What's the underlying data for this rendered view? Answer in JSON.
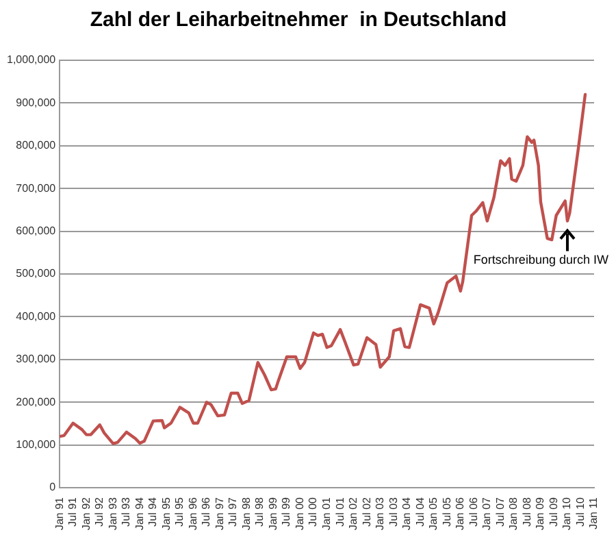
{
  "chart_data": {
    "type": "line",
    "title": "Zahl der Leiharbeitnehmer  in Deutschland",
    "series": [
      {
        "color": "#c0504d",
        "x": [
          "1991-01",
          "1991-03",
          "1991-07",
          "1991-11",
          "1992-01",
          "1992-03",
          "1992-07",
          "1992-09",
          "1993-01",
          "1993-03",
          "1993-07",
          "1993-11",
          "1994-01",
          "1994-03",
          "1994-07",
          "1994-11",
          "1994-12",
          "1995-03",
          "1995-07",
          "1995-11",
          "1996-01",
          "1996-03",
          "1996-07",
          "1996-09",
          "1996-12",
          "1997-03",
          "1997-06",
          "1997-09",
          "1997-11",
          "1998-02",
          "1998-06",
          "1998-09",
          "1998-12",
          "1999-02",
          "1999-03",
          "1999-07",
          "1999-11",
          "2000-01",
          "2000-03",
          "2000-07",
          "2000-09",
          "2000-11",
          "2001-01",
          "2001-03",
          "2001-07",
          "2001-09",
          "2002-01",
          "2002-03",
          "2002-07",
          "2002-11",
          "2003-01",
          "2003-05",
          "2003-07",
          "2003-10",
          "2003-12",
          "2004-02",
          "2004-07",
          "2004-11",
          "2005-01",
          "2005-03",
          "2005-07",
          "2005-11",
          "2006-01",
          "2006-02",
          "2006-06",
          "2006-08",
          "2006-11",
          "2007-01",
          "2007-04",
          "2007-07",
          "2007-09",
          "2007-11",
          "2007-12",
          "2008-02",
          "2008-05",
          "2008-07",
          "2008-09",
          "2008-10",
          "2008-12",
          "2009-01",
          "2009-04",
          "2009-06",
          "2009-08",
          "2009-12",
          "2010-01",
          "2010-02",
          "2010-06",
          "2010-09"
        ],
        "values": [
          120000,
          122000,
          151000,
          136000,
          124000,
          124000,
          147000,
          128000,
          103000,
          106000,
          130000,
          115000,
          104000,
          109000,
          156000,
          157000,
          140000,
          151000,
          188000,
          175000,
          151000,
          151000,
          200000,
          194000,
          168000,
          170000,
          221000,
          221000,
          197000,
          204000,
          293000,
          264000,
          229000,
          231000,
          247000,
          306000,
          306000,
          279000,
          293000,
          362000,
          356000,
          359000,
          328000,
          332000,
          370000,
          343000,
          287000,
          289000,
          351000,
          335000,
          282000,
          306000,
          367000,
          372000,
          330000,
          328000,
          428000,
          420000,
          383000,
          410000,
          479000,
          495000,
          460000,
          482000,
          637000,
          647000,
          667000,
          624000,
          679000,
          765000,
          754000,
          770000,
          722000,
          717000,
          754000,
          821000,
          808000,
          813000,
          754000,
          669000,
          583000,
          580000,
          637000,
          671000,
          624000,
          642000,
          797000,
          920000
        ]
      }
    ],
    "xlim": [
      "1991-01",
      "2011-01"
    ],
    "xticks": [
      {
        "value": "1991-01",
        "label": "Jan 91"
      },
      {
        "value": "1991-07",
        "label": "Jul 91"
      },
      {
        "value": "1992-01",
        "label": "Jan 92"
      },
      {
        "value": "1992-07",
        "label": "Jul 92"
      },
      {
        "value": "1993-01",
        "label": "Jan 93"
      },
      {
        "value": "1993-07",
        "label": "Jul 93"
      },
      {
        "value": "1994-01",
        "label": "Jan 94"
      },
      {
        "value": "1994-07",
        "label": "Jul 94"
      },
      {
        "value": "1995-01",
        "label": "Jan 95"
      },
      {
        "value": "1995-07",
        "label": "Jul 95"
      },
      {
        "value": "1996-01",
        "label": "Jan 96"
      },
      {
        "value": "1996-07",
        "label": "Jul 96"
      },
      {
        "value": "1997-01",
        "label": "Jan 97"
      },
      {
        "value": "1997-07",
        "label": "Jul 97"
      },
      {
        "value": "1998-01",
        "label": "Jan 98"
      },
      {
        "value": "1998-07",
        "label": "Jul 98"
      },
      {
        "value": "1999-01",
        "label": "Jan 99"
      },
      {
        "value": "1999-07",
        "label": "Jul 99"
      },
      {
        "value": "2000-01",
        "label": "Jan 00"
      },
      {
        "value": "2000-07",
        "label": "Jul 00"
      },
      {
        "value": "2001-01",
        "label": "Jan 01"
      },
      {
        "value": "2001-07",
        "label": "Jul 01"
      },
      {
        "value": "2002-01",
        "label": "Jan 02"
      },
      {
        "value": "2002-07",
        "label": "Jul 02"
      },
      {
        "value": "2003-01",
        "label": "Jan 03"
      },
      {
        "value": "2003-07",
        "label": "Jul 03"
      },
      {
        "value": "2004-01",
        "label": "Jan 04"
      },
      {
        "value": "2004-07",
        "label": "Jul 04"
      },
      {
        "value": "2005-01",
        "label": "Jan 05"
      },
      {
        "value": "2005-07",
        "label": "Jul 05"
      },
      {
        "value": "2006-01",
        "label": "Jan 06"
      },
      {
        "value": "2006-07",
        "label": "Jul 06"
      },
      {
        "value": "2007-01",
        "label": "Jan 07"
      },
      {
        "value": "2007-07",
        "label": "Jul 07"
      },
      {
        "value": "2008-01",
        "label": "Jan 08"
      },
      {
        "value": "2008-07",
        "label": "Jul 08"
      },
      {
        "value": "2009-01",
        "label": "Jan 09"
      },
      {
        "value": "2009-07",
        "label": "Jul 09"
      },
      {
        "value": "2010-01",
        "label": "Jan 10"
      },
      {
        "value": "2010-07",
        "label": "Jul 10"
      },
      {
        "value": "2011-01",
        "label": "Jan 11"
      }
    ],
    "ylim": [
      0,
      1000000
    ],
    "yticks": [
      {
        "value": 0,
        "label": "0"
      },
      {
        "value": 100000,
        "label": "100,000"
      },
      {
        "value": 200000,
        "label": "200,000"
      },
      {
        "value": 300000,
        "label": "300,000"
      },
      {
        "value": 400000,
        "label": "400,000"
      },
      {
        "value": 500000,
        "label": "500,000"
      },
      {
        "value": 600000,
        "label": "600,000"
      },
      {
        "value": 700000,
        "label": "700,000"
      },
      {
        "value": 800000,
        "label": "800,000"
      },
      {
        "value": 900000,
        "label": "900,000"
      },
      {
        "value": 1000000,
        "label": "1,000,000"
      }
    ],
    "grid": "y",
    "marker": "none",
    "line_style": "solid",
    "legend": false,
    "annotations": [
      {
        "text": "Fortschreibung durch IW",
        "x": "2010-01",
        "y": 624000
      }
    ]
  }
}
